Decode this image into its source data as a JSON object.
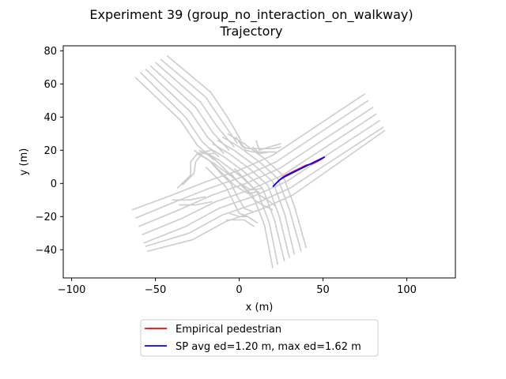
{
  "chart_data": {
    "type": "line",
    "title": "Experiment 39 (group_no_interaction_on_walkway)",
    "subtitle": "Trajectory",
    "xlabel": "x (m)",
    "ylabel": "y (m)",
    "xlim": [
      -105,
      129
    ],
    "ylim": [
      -57,
      83
    ],
    "xticks": [
      -100,
      -50,
      0,
      50,
      100
    ],
    "yticks": [
      -40,
      -20,
      0,
      20,
      40,
      60,
      80
    ],
    "grid": false,
    "legend_position": "below",
    "colors": {
      "background_lanes": "#cccccc",
      "empirical": "#ff0000",
      "sp": "#0000ff"
    },
    "background_lanes": [
      [
        [
          -62,
          64
        ],
        [
          -35,
          38
        ],
        [
          -25,
          23
        ],
        [
          -15,
          14
        ]
      ],
      [
        [
          -59,
          67
        ],
        [
          -32,
          40
        ],
        [
          -22,
          25
        ],
        [
          -12,
          16
        ]
      ],
      [
        [
          -56,
          69
        ],
        [
          -29,
          43
        ],
        [
          -19,
          28
        ],
        [
          -9,
          18
        ]
      ],
      [
        [
          -53,
          71
        ],
        [
          -26,
          46
        ],
        [
          -16,
          31
        ],
        [
          -6,
          20
        ]
      ],
      [
        [
          -50,
          73
        ],
        [
          -23,
          49
        ],
        [
          -13,
          34
        ],
        [
          -3,
          22
        ]
      ],
      [
        [
          -47,
          75
        ],
        [
          -20,
          52
        ],
        [
          -10,
          37
        ],
        [
          -1,
          24
        ]
      ],
      [
        [
          -43,
          77
        ],
        [
          -17,
          55
        ],
        [
          -7,
          40
        ],
        [
          1,
          26
        ]
      ],
      [
        [
          -64,
          -16
        ],
        [
          -40,
          -7
        ],
        [
          -20,
          1
        ],
        [
          0,
          8
        ],
        [
          20,
          17
        ],
        [
          75,
          54
        ]
      ],
      [
        [
          -62,
          -21
        ],
        [
          -38,
          -11
        ],
        [
          -18,
          -3
        ],
        [
          2,
          4
        ],
        [
          22,
          13
        ],
        [
          77,
          50
        ]
      ],
      [
        [
          -60,
          -26
        ],
        [
          -36,
          -16
        ],
        [
          -16,
          -7
        ],
        [
          4,
          0
        ],
        [
          24,
          9
        ],
        [
          80,
          46
        ]
      ],
      [
        [
          -58,
          -31
        ],
        [
          -34,
          -21
        ],
        [
          -14,
          -11
        ],
        [
          6,
          -4
        ],
        [
          26,
          5
        ],
        [
          82,
          42
        ]
      ],
      [
        [
          -57,
          -36
        ],
        [
          -32,
          -26
        ],
        [
          -12,
          -15
        ],
        [
          8,
          -8
        ],
        [
          28,
          1
        ],
        [
          84,
          38
        ]
      ],
      [
        [
          -56,
          -38
        ],
        [
          -30,
          -30
        ],
        [
          -10,
          -19
        ],
        [
          10,
          -12
        ],
        [
          30,
          -3
        ],
        [
          86,
          34
        ]
      ],
      [
        [
          -55,
          -41
        ],
        [
          -28,
          -34
        ],
        [
          -8,
          -23
        ],
        [
          12,
          -16
        ],
        [
          32,
          -7
        ],
        [
          87,
          32
        ]
      ],
      [
        [
          -25,
          18
        ],
        [
          -15,
          12
        ],
        [
          -3,
          3
        ],
        [
          8,
          -7
        ],
        [
          15,
          -25
        ],
        [
          20,
          -51
        ]
      ],
      [
        [
          -22,
          20
        ],
        [
          -12,
          14
        ],
        [
          0,
          5
        ],
        [
          11,
          -5
        ],
        [
          18,
          -24
        ],
        [
          23,
          -49
        ]
      ],
      [
        [
          -19,
          22
        ],
        [
          -9,
          16
        ],
        [
          3,
          7
        ],
        [
          14,
          -3
        ],
        [
          21,
          -22
        ],
        [
          27,
          -47
        ]
      ],
      [
        [
          -16,
          24
        ],
        [
          -6,
          18
        ],
        [
          6,
          9
        ],
        [
          17,
          -1
        ],
        [
          24,
          -20
        ],
        [
          30,
          -45
        ]
      ],
      [
        [
          -13,
          26
        ],
        [
          -3,
          20
        ],
        [
          9,
          11
        ],
        [
          20,
          1
        ],
        [
          27,
          -18
        ],
        [
          33,
          -43
        ]
      ],
      [
        [
          -10,
          28
        ],
        [
          0,
          22
        ],
        [
          12,
          13
        ],
        [
          23,
          3
        ],
        [
          30,
          -16
        ],
        [
          37,
          -41
        ]
      ],
      [
        [
          -7,
          30
        ],
        [
          3,
          24
        ],
        [
          15,
          15
        ],
        [
          26,
          5
        ],
        [
          33,
          -14
        ],
        [
          40,
          -39
        ]
      ],
      [
        [
          -37,
          -3
        ],
        [
          -29,
          5
        ],
        [
          -29,
          13
        ],
        [
          -25,
          18
        ],
        [
          -17,
          20
        ]
      ],
      [
        [
          -34,
          -1
        ],
        [
          -27,
          6
        ],
        [
          -26,
          13
        ],
        [
          -22,
          18
        ],
        [
          -15,
          18
        ]
      ],
      [
        [
          -20,
          10
        ],
        [
          -14,
          4
        ],
        [
          -8,
          -2
        ],
        [
          -4,
          -10
        ],
        [
          0,
          -18
        ],
        [
          5,
          -20
        ]
      ],
      [
        [
          -18,
          14
        ],
        [
          -11,
          6
        ],
        [
          -5,
          0
        ],
        [
          -1,
          -8
        ],
        [
          3,
          -15
        ],
        [
          8,
          -17
        ]
      ],
      [
        [
          -2,
          28
        ],
        [
          2,
          22
        ],
        [
          6,
          21
        ],
        [
          20,
          21
        ],
        [
          25,
          22
        ]
      ],
      [
        [
          0,
          26
        ],
        [
          4,
          20
        ],
        [
          8,
          19
        ],
        [
          22,
          19
        ]
      ],
      [
        [
          -5,
          6
        ],
        [
          0,
          0
        ],
        [
          4,
          -4
        ],
        [
          9,
          -10
        ],
        [
          14,
          -13
        ],
        [
          20,
          -16
        ]
      ],
      [
        [
          -3,
          9
        ],
        [
          3,
          3
        ],
        [
          7,
          -1
        ],
        [
          12,
          -7
        ],
        [
          17,
          -10
        ],
        [
          22,
          -14
        ]
      ],
      [
        [
          -40,
          -10
        ],
        [
          -30,
          -10
        ],
        [
          -20,
          -8
        ]
      ],
      [
        [
          -36,
          -13
        ],
        [
          -26,
          -13
        ],
        [
          -16,
          -11
        ]
      ],
      [
        [
          -27,
          20
        ],
        [
          -18,
          14
        ],
        [
          -12,
          8
        ],
        [
          -3,
          -1
        ],
        [
          5,
          -6
        ],
        [
          12,
          -5
        ]
      ],
      [
        [
          -24,
          20
        ],
        [
          -16,
          16
        ],
        [
          -10,
          10
        ],
        [
          -1,
          1
        ],
        [
          7,
          -4
        ],
        [
          14,
          -3
        ]
      ],
      [
        [
          -6,
          -18
        ],
        [
          0,
          -20
        ],
        [
          5,
          -20
        ],
        [
          11,
          -24
        ]
      ],
      [
        [
          -8,
          -22
        ],
        [
          -2,
          -22
        ],
        [
          3,
          -22
        ],
        [
          9,
          -26
        ]
      ],
      [
        [
          10,
          26
        ],
        [
          12,
          20
        ],
        [
          18,
          22
        ],
        [
          25,
          24
        ]
      ],
      [
        [
          8,
          22
        ],
        [
          12,
          18
        ],
        [
          18,
          19
        ]
      ]
    ],
    "series": [
      {
        "name": "Empirical pedestrian",
        "color": "#ff0000",
        "points": [
          [
            21,
            -1
          ],
          [
            23,
            1
          ],
          [
            25,
            3
          ],
          [
            28,
            5
          ],
          [
            32,
            7
          ],
          [
            36,
            9
          ],
          [
            40,
            11
          ],
          [
            44,
            12
          ],
          [
            48,
            14
          ],
          [
            51,
            16
          ]
        ]
      },
      {
        "name": "SP avg ed=1.20 m, max ed=1.62 m",
        "color": "#0000ff",
        "points": [
          [
            20,
            -2
          ],
          [
            22,
            0
          ],
          [
            24,
            2
          ],
          [
            27,
            4
          ],
          [
            31,
            6
          ],
          [
            35,
            8
          ],
          [
            39,
            10
          ],
          [
            43,
            12
          ],
          [
            47,
            14
          ],
          [
            51,
            16
          ]
        ]
      }
    ]
  }
}
